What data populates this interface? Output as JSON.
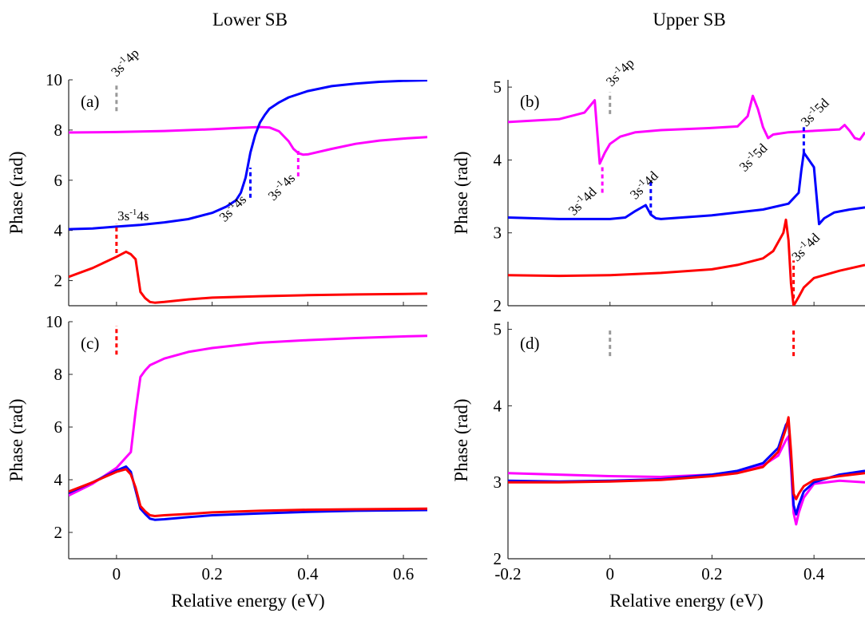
{
  "column_titles": [
    "Lower SB",
    "Upper SB"
  ],
  "chart_data": [
    {
      "id": "a",
      "type": "line",
      "panel_label": "(a)",
      "xlim": [
        -0.1,
        0.65
      ],
      "ylim": [
        1,
        10
      ],
      "yticks": [
        2,
        4,
        6,
        8,
        10
      ],
      "xticks": [
        0,
        0.2,
        0.4,
        0.6
      ],
      "show_xticklabels": false,
      "ylabel": "Phase (rad)",
      "xlabel": "",
      "series": [
        {
          "color": "#ff00ff",
          "x": [
            -0.1,
            0,
            0.1,
            0.2,
            0.25,
            0.3,
            0.32,
            0.34,
            0.36,
            0.37,
            0.38,
            0.39,
            0.4,
            0.45,
            0.5,
            0.55,
            0.6,
            0.65
          ],
          "y": [
            7.9,
            7.92,
            7.96,
            8.03,
            8.08,
            8.12,
            8.1,
            7.95,
            7.55,
            7.25,
            7.08,
            7.02,
            7.03,
            7.25,
            7.45,
            7.58,
            7.66,
            7.72
          ]
        },
        {
          "color": "#0000ff",
          "x": [
            -0.1,
            -0.05,
            0,
            0.05,
            0.1,
            0.15,
            0.2,
            0.23,
            0.25,
            0.26,
            0.27,
            0.28,
            0.29,
            0.3,
            0.31,
            0.32,
            0.34,
            0.36,
            0.4,
            0.45,
            0.5,
            0.55,
            0.6,
            0.65
          ],
          "y": [
            4.05,
            4.08,
            4.15,
            4.22,
            4.32,
            4.45,
            4.7,
            4.95,
            5.2,
            5.5,
            6.1,
            7.1,
            7.8,
            8.3,
            8.6,
            8.85,
            9.1,
            9.3,
            9.55,
            9.75,
            9.85,
            9.92,
            9.96,
            9.98
          ]
        },
        {
          "color": "#ff0000",
          "x": [
            -0.1,
            -0.05,
            0,
            0.02,
            0.03,
            0.04,
            0.05,
            0.06,
            0.07,
            0.08,
            0.1,
            0.15,
            0.2,
            0.3,
            0.4,
            0.5,
            0.65
          ],
          "y": [
            2.15,
            2.5,
            2.95,
            3.15,
            3.05,
            2.85,
            1.55,
            1.3,
            1.15,
            1.12,
            1.15,
            1.25,
            1.32,
            1.38,
            1.42,
            1.45,
            1.48
          ]
        }
      ],
      "markers": [
        {
          "x": 0,
          "y0": 8.75,
          "y1": 9.85,
          "color": "#999999"
        },
        {
          "x": 0,
          "y0": 3.1,
          "y1": 4.25,
          "color": "#ff0000"
        },
        {
          "x": 0.28,
          "y0": 5.3,
          "y1": 6.5,
          "color": "#0000ff"
        },
        {
          "x": 0.38,
          "y0": 6.15,
          "y1": 7.25,
          "color": "#ff00ff"
        }
      ],
      "annotations": [
        {
          "base": "3s",
          "sup": "-1",
          "tail": "4p",
          "x": 0,
          "y": 10.1,
          "angle": -45,
          "anchor": "start"
        },
        {
          "base": "3s",
          "sup": "-1",
          "tail": "4s",
          "x": 0.002,
          "y": 4.4,
          "angle": 0,
          "anchor": "start"
        },
        {
          "base": "3s",
          "sup": "-1",
          "tail": "4s",
          "x": 0.273,
          "y": 5.2,
          "angle": -45,
          "anchor": "end"
        },
        {
          "base": "3s",
          "sup": "-1",
          "tail": "4s",
          "x": 0.375,
          "y": 6.05,
          "angle": -45,
          "anchor": "end"
        }
      ]
    },
    {
      "id": "b",
      "type": "line",
      "panel_label": "(b)",
      "xlim": [
        -0.2,
        0.5
      ],
      "ylim": [
        2,
        5.1
      ],
      "yticks": [
        2,
        3,
        4,
        5
      ],
      "xticks": [
        -0.2,
        0,
        0.2,
        0.4
      ],
      "show_xticklabels": false,
      "ylabel": "Phase (rad)",
      "xlabel": "",
      "series": [
        {
          "color": "#ff00ff",
          "x": [
            -0.2,
            -0.1,
            -0.05,
            -0.03,
            -0.02,
            -0.01,
            0,
            0.02,
            0.05,
            0.1,
            0.2,
            0.25,
            0.27,
            0.28,
            0.29,
            0.3,
            0.31,
            0.32,
            0.35,
            0.4,
            0.45,
            0.46,
            0.47,
            0.48,
            0.49,
            0.5
          ],
          "y": [
            4.52,
            4.56,
            4.65,
            4.82,
            3.95,
            4.1,
            4.22,
            4.32,
            4.38,
            4.41,
            4.44,
            4.46,
            4.6,
            4.88,
            4.7,
            4.45,
            4.3,
            4.35,
            4.38,
            4.4,
            4.42,
            4.48,
            4.4,
            4.3,
            4.28,
            4.38
          ]
        },
        {
          "color": "#0000ff",
          "x": [
            -0.2,
            -0.1,
            0,
            0.03,
            0.05,
            0.07,
            0.08,
            0.09,
            0.1,
            0.2,
            0.3,
            0.35,
            0.37,
            0.375,
            0.38,
            0.39,
            0.4,
            0.41,
            0.42,
            0.44,
            0.47,
            0.5
          ],
          "y": [
            3.21,
            3.19,
            3.19,
            3.21,
            3.3,
            3.38,
            3.25,
            3.2,
            3.19,
            3.24,
            3.32,
            3.4,
            3.55,
            3.85,
            4.1,
            4.0,
            3.9,
            3.12,
            3.2,
            3.28,
            3.32,
            3.35
          ]
        },
        {
          "color": "#ff0000",
          "x": [
            -0.2,
            -0.1,
            0,
            0.1,
            0.2,
            0.25,
            0.3,
            0.32,
            0.34,
            0.345,
            0.35,
            0.355,
            0.36,
            0.37,
            0.38,
            0.4,
            0.45,
            0.5
          ],
          "y": [
            2.42,
            2.41,
            2.42,
            2.45,
            2.5,
            2.56,
            2.65,
            2.75,
            3.0,
            3.18,
            2.9,
            2.3,
            2.0,
            2.12,
            2.25,
            2.38,
            2.48,
            2.56
          ]
        }
      ],
      "markers": [
        {
          "x": 0,
          "y0": 4.63,
          "y1": 4.93,
          "color": "#999999"
        },
        {
          "x": -0.015,
          "y0": 3.55,
          "y1": 3.92,
          "color": "#ff00ff"
        },
        {
          "x": 0.08,
          "y0": 3.25,
          "y1": 3.72,
          "color": "#0000ff"
        },
        {
          "x": 0.38,
          "y0": 4.1,
          "y1": 4.45,
          "color": "#0000ff"
        },
        {
          "x": 0.36,
          "y0": 2.1,
          "y1": 2.62,
          "color": "#ff0000"
        }
      ],
      "annotations": [
        {
          "base": "3s",
          "sup": "-1",
          "tail": "4p",
          "x": 0.003,
          "y": 5.0,
          "angle": -45,
          "anchor": "start"
        },
        {
          "base": "3s",
          "sup": "-1",
          "tail": "4d",
          "x": -0.025,
          "y": 3.55,
          "angle": -45,
          "anchor": "end"
        },
        {
          "base": "3s",
          "sup": "-1",
          "tail": "4d",
          "x": 0.05,
          "y": 3.45,
          "angle": -45,
          "anchor": "start"
        },
        {
          "base": "3s",
          "sup": "-1",
          "tail": "5d",
          "x": 0.31,
          "y": 4.15,
          "angle": -45,
          "anchor": "end"
        },
        {
          "base": "3s",
          "sup": "-1",
          "tail": "5d",
          "x": 0.385,
          "y": 4.45,
          "angle": -45,
          "anchor": "start"
        },
        {
          "base": "3s",
          "sup": "-1",
          "tail": "4d",
          "x": 0.367,
          "y": 2.6,
          "angle": -45,
          "anchor": "start"
        }
      ]
    },
    {
      "id": "c",
      "type": "line",
      "panel_label": "(c)",
      "xlim": [
        -0.1,
        0.65
      ],
      "ylim": [
        1,
        10
      ],
      "yticks": [
        2,
        4,
        6,
        8,
        10
      ],
      "xticks": [
        0,
        0.2,
        0.4,
        0.6
      ],
      "show_xticklabels": true,
      "ylabel": "Phase (rad)",
      "xlabel": "Relative energy (eV)",
      "series": [
        {
          "color": "#ff00ff",
          "x": [
            -0.1,
            -0.05,
            0,
            0.03,
            0.04,
            0.05,
            0.06,
            0.07,
            0.1,
            0.15,
            0.2,
            0.3,
            0.4,
            0.5,
            0.6,
            0.65
          ],
          "y": [
            3.4,
            3.85,
            4.45,
            5.05,
            6.6,
            7.9,
            8.15,
            8.35,
            8.6,
            8.85,
            9.0,
            9.2,
            9.3,
            9.38,
            9.44,
            9.46
          ]
        },
        {
          "color": "#0000ff",
          "x": [
            -0.1,
            -0.05,
            0,
            0.02,
            0.03,
            0.04,
            0.05,
            0.06,
            0.07,
            0.08,
            0.1,
            0.15,
            0.2,
            0.3,
            0.4,
            0.5,
            0.65
          ],
          "y": [
            3.5,
            3.9,
            4.35,
            4.5,
            4.3,
            3.6,
            2.9,
            2.7,
            2.52,
            2.48,
            2.5,
            2.58,
            2.65,
            2.72,
            2.78,
            2.82,
            2.85
          ]
        },
        {
          "color": "#ff0000",
          "x": [
            -0.1,
            -0.05,
            0,
            0.02,
            0.03,
            0.04,
            0.05,
            0.06,
            0.07,
            0.08,
            0.1,
            0.15,
            0.2,
            0.3,
            0.4,
            0.5,
            0.65
          ],
          "y": [
            3.55,
            3.9,
            4.3,
            4.4,
            4.2,
            3.7,
            3.0,
            2.8,
            2.65,
            2.62,
            2.65,
            2.7,
            2.76,
            2.82,
            2.86,
            2.88,
            2.9
          ]
        }
      ],
      "markers": [
        {
          "x": 0,
          "y0": 8.75,
          "y1": 9.85,
          "color": "#ff0000"
        }
      ],
      "annotations": []
    },
    {
      "id": "d",
      "type": "line",
      "panel_label": "(d)",
      "xlim": [
        -0.2,
        0.5
      ],
      "ylim": [
        2,
        5.1
      ],
      "yticks": [
        2,
        3,
        4,
        5
      ],
      "xticks": [
        -0.2,
        0,
        0.2,
        0.4
      ],
      "show_xticklabels": true,
      "ylabel": "Phase (rad)",
      "xlabel": "Relative energy (eV)",
      "series": [
        {
          "color": "#ff00ff",
          "x": [
            -0.2,
            -0.1,
            0,
            0.1,
            0.2,
            0.25,
            0.3,
            0.33,
            0.345,
            0.35,
            0.355,
            0.36,
            0.365,
            0.37,
            0.38,
            0.4,
            0.45,
            0.5
          ],
          "y": [
            3.12,
            3.1,
            3.08,
            3.07,
            3.1,
            3.14,
            3.22,
            3.35,
            3.55,
            3.6,
            3.2,
            2.6,
            2.45,
            2.6,
            2.8,
            2.98,
            3.02,
            3.0
          ]
        },
        {
          "color": "#0000ff",
          "x": [
            -0.2,
            -0.1,
            0,
            0.1,
            0.2,
            0.25,
            0.3,
            0.33,
            0.345,
            0.35,
            0.355,
            0.36,
            0.365,
            0.37,
            0.38,
            0.4,
            0.45,
            0.5
          ],
          "y": [
            3.02,
            3.01,
            3.02,
            3.04,
            3.1,
            3.15,
            3.25,
            3.45,
            3.75,
            3.8,
            3.3,
            2.7,
            2.58,
            2.7,
            2.88,
            3.0,
            3.1,
            3.15
          ]
        },
        {
          "color": "#ff0000",
          "x": [
            -0.2,
            -0.1,
            0,
            0.1,
            0.2,
            0.25,
            0.3,
            0.33,
            0.345,
            0.35,
            0.355,
            0.36,
            0.365,
            0.37,
            0.38,
            0.4,
            0.45,
            0.5
          ],
          "y": [
            3.0,
            3.0,
            3.01,
            3.03,
            3.08,
            3.12,
            3.2,
            3.4,
            3.7,
            3.85,
            3.4,
            2.85,
            2.78,
            2.85,
            2.95,
            3.03,
            3.08,
            3.12
          ]
        }
      ],
      "markers": [
        {
          "x": 0,
          "y0": 4.65,
          "y1": 5.0,
          "color": "#999999"
        },
        {
          "x": 0.36,
          "y0": 4.65,
          "y1": 5.0,
          "color": "#ff0000"
        }
      ],
      "annotations": []
    }
  ]
}
